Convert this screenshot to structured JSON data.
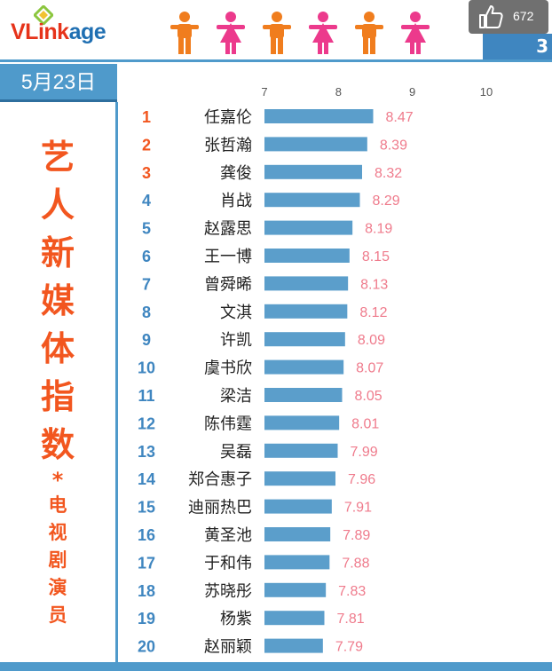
{
  "header": {
    "logo_part1": "VLink",
    "logo_part2": "age",
    "like_count": "672",
    "corner_text": "3"
  },
  "sidebar": {
    "date": "5月23日",
    "title_chars": [
      "艺",
      "人",
      "新",
      "媒",
      "体",
      "指",
      "数"
    ],
    "separator": "*",
    "subtitle_chars": [
      "电",
      "视",
      "剧",
      "演",
      "员"
    ]
  },
  "colors": {
    "accent_blue": "#4f9acb",
    "bar_blue": "#5b9ecb",
    "title_orange": "#f2561f",
    "value_pink": "#ef7b8c",
    "rank_top3": "#f2561f",
    "rank_other": "#3f86c0",
    "figure_orange": "#f07d1e",
    "figure_pink": "#ec3a8c"
  },
  "chart_data": {
    "type": "bar",
    "orientation": "horizontal",
    "xlim": [
      7,
      10
    ],
    "x_ticks": [
      "7",
      "8",
      "9",
      "10"
    ],
    "grid": false,
    "ranks": [
      "1",
      "2",
      "3",
      "4",
      "5",
      "6",
      "7",
      "8",
      "9",
      "10",
      "11",
      "12",
      "13",
      "14",
      "15",
      "16",
      "17",
      "18",
      "19",
      "20"
    ],
    "categories": [
      "任嘉伦",
      "张哲瀚",
      "龚俊",
      "肖战",
      "赵露思",
      "王一博",
      "曾舜晞",
      "文淇",
      "许凯",
      "虞书欣",
      "梁洁",
      "陈伟霆",
      "吴磊",
      "郑合惠子",
      "迪丽热巴",
      "黄圣池",
      "于和伟",
      "苏晓彤",
      "杨紫",
      "赵丽颖"
    ],
    "values": [
      8.47,
      8.39,
      8.32,
      8.29,
      8.19,
      8.15,
      8.13,
      8.12,
      8.09,
      8.07,
      8.05,
      8.01,
      7.99,
      7.96,
      7.91,
      7.89,
      7.88,
      7.83,
      7.81,
      7.79
    ],
    "value_labels": [
      "8.47",
      "8.39",
      "8.32",
      "8.29",
      "8.19",
      "8.15",
      "8.13",
      "8.12",
      "8.09",
      "8.07",
      "8.05",
      "8.01",
      "7.99",
      "7.96",
      "7.91",
      "7.89",
      "7.88",
      "7.83",
      "7.81",
      "7.79"
    ]
  }
}
